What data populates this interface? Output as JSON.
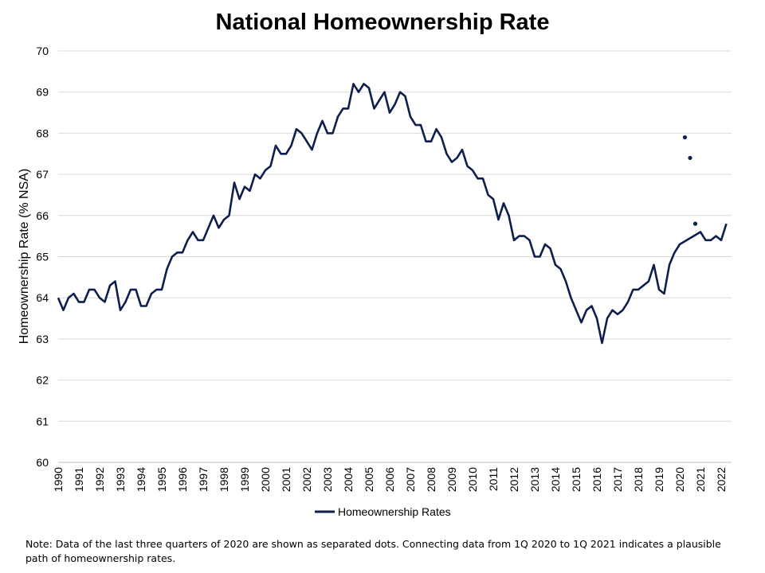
{
  "chart_data": {
    "type": "line",
    "title": "National Homeownership Rate",
    "ylabel": "Homeownership Rate (% NSA)",
    "xlabel": "",
    "ylim": [
      60,
      70
    ],
    "yticks": [
      60,
      61,
      62,
      63,
      64,
      65,
      66,
      67,
      68,
      69,
      70
    ],
    "xlim": [
      1990,
      2022.5
    ],
    "xticks": [
      "1990",
      "1991",
      "1992",
      "1993",
      "1994",
      "1995",
      "1996",
      "1997",
      "1998",
      "1999",
      "2000",
      "2001",
      "2002",
      "2003",
      "2004",
      "2005",
      "2006",
      "2007",
      "2008",
      "2009",
      "2010",
      "2011",
      "2012",
      "2013",
      "2014",
      "2015",
      "2016",
      "2017",
      "2018",
      "2019",
      "2020",
      "2021",
      "2022"
    ],
    "grid": true,
    "legend": "bottom",
    "color": "#0e1f4d",
    "series": [
      {
        "name": "Homeownership Rates",
        "x": [
          1990.0,
          1990.25,
          1990.5,
          1990.75,
          1991.0,
          1991.25,
          1991.5,
          1991.75,
          1992.0,
          1992.25,
          1992.5,
          1992.75,
          1993.0,
          1993.25,
          1993.5,
          1993.75,
          1994.0,
          1994.25,
          1994.5,
          1994.75,
          1995.0,
          1995.25,
          1995.5,
          1995.75,
          1996.0,
          1996.25,
          1996.5,
          1996.75,
          1997.0,
          1997.25,
          1997.5,
          1997.75,
          1998.0,
          1998.25,
          1998.5,
          1998.75,
          1999.0,
          1999.25,
          1999.5,
          1999.75,
          2000.0,
          2000.25,
          2000.5,
          2000.75,
          2001.0,
          2001.25,
          2001.5,
          2001.75,
          2002.0,
          2002.25,
          2002.5,
          2002.75,
          2003.0,
          2003.25,
          2003.5,
          2003.75,
          2004.0,
          2004.25,
          2004.5,
          2004.75,
          2005.0,
          2005.25,
          2005.5,
          2005.75,
          2006.0,
          2006.25,
          2006.5,
          2006.75,
          2007.0,
          2007.25,
          2007.5,
          2007.75,
          2008.0,
          2008.25,
          2008.5,
          2008.75,
          2009.0,
          2009.25,
          2009.5,
          2009.75,
          2010.0,
          2010.25,
          2010.5,
          2010.75,
          2011.0,
          2011.25,
          2011.5,
          2011.75,
          2012.0,
          2012.25,
          2012.5,
          2012.75,
          2013.0,
          2013.25,
          2013.5,
          2013.75,
          2014.0,
          2014.25,
          2014.5,
          2014.75,
          2015.0,
          2015.25,
          2015.5,
          2015.75,
          2016.0,
          2016.25,
          2016.5,
          2016.75,
          2017.0,
          2017.25,
          2017.5,
          2017.75,
          2018.0,
          2018.25,
          2018.5,
          2018.75,
          2019.0,
          2019.25,
          2019.5,
          2019.75,
          2020.0,
          2021.0,
          2021.25,
          2021.5,
          2021.75,
          2022.0,
          2022.25
        ],
        "y": [
          64.0,
          63.7,
          64.0,
          64.1,
          63.9,
          63.9,
          64.2,
          64.2,
          64.0,
          63.9,
          64.3,
          64.4,
          63.7,
          63.9,
          64.2,
          64.2,
          63.8,
          63.8,
          64.1,
          64.2,
          64.2,
          64.7,
          65.0,
          65.1,
          65.1,
          65.4,
          65.6,
          65.4,
          65.4,
          65.7,
          66.0,
          65.7,
          65.9,
          66.0,
          66.8,
          66.4,
          66.7,
          66.6,
          67.0,
          66.9,
          67.1,
          67.2,
          67.7,
          67.5,
          67.5,
          67.7,
          68.1,
          68.0,
          67.8,
          67.6,
          68.0,
          68.3,
          68.0,
          68.0,
          68.4,
          68.6,
          68.6,
          69.2,
          69.0,
          69.2,
          69.1,
          68.6,
          68.8,
          69.0,
          68.5,
          68.7,
          69.0,
          68.9,
          68.4,
          68.2,
          68.2,
          67.8,
          67.8,
          68.1,
          67.9,
          67.5,
          67.3,
          67.4,
          67.6,
          67.2,
          67.1,
          66.9,
          66.9,
          66.5,
          66.4,
          65.9,
          66.3,
          66.0,
          65.4,
          65.5,
          65.5,
          65.4,
          65.0,
          65.0,
          65.3,
          65.2,
          64.8,
          64.7,
          64.4,
          64.0,
          63.7,
          63.4,
          63.7,
          63.8,
          63.5,
          62.9,
          63.5,
          63.7,
          63.6,
          63.7,
          63.9,
          64.2,
          64.2,
          64.3,
          64.4,
          64.8,
          64.2,
          64.1,
          64.8,
          65.1,
          65.3,
          65.6,
          65.4,
          65.4,
          65.5,
          65.4,
          65.8
        ]
      },
      {
        "name": "",
        "style": "dots",
        "x": [
          2020.25,
          2020.5,
          2020.75
        ],
        "y": [
          67.9,
          67.4,
          65.8
        ]
      }
    ]
  },
  "legend": {
    "label": "Homeownership Rates"
  },
  "note": "Note: Data of the last three quarters of 2020  are shown as separated dots. Connecting data from 1Q 2020  to 1Q 2021  indicates a plausible path of homeownership rates."
}
